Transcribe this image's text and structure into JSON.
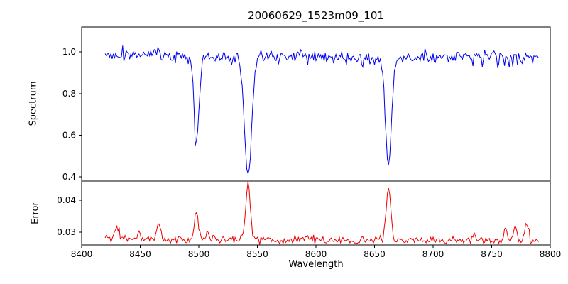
{
  "chart_data": {
    "type": "line",
    "title": "20060629_1523m09_101",
    "xlabel": "Wavelength",
    "legend": null,
    "grid": false,
    "x_range": [
      8400,
      8800
    ],
    "x_ticks": [
      8400,
      8450,
      8500,
      8550,
      8600,
      8650,
      8700,
      8750,
      8800
    ],
    "x_tick_labels": [
      "8400",
      "8450",
      "8500",
      "8550",
      "8600",
      "8650",
      "8700",
      "8750",
      "8800"
    ],
    "data_x_start": 8420,
    "data_x_end": 8790,
    "seed": 20060629,
    "panels": [
      {
        "name": "spectrum",
        "ylabel": "Spectrum",
        "ylim": [
          0.38,
          1.12
        ],
        "y_ticks": [
          0.4,
          0.6,
          0.8,
          1.0
        ],
        "y_tick_labels": [
          "0.4",
          "0.6",
          "0.8",
          "1.0"
        ],
        "line_color": "#0000ee",
        "series": {
          "kind": "noisy continuum with absorption lines (Ca II triplet)",
          "continuum": 0.978,
          "noise_sigma": 0.015,
          "absorption_lines": [
            {
              "center": 8498,
              "depth_below_continuum": 0.4,
              "sigma": 2.2,
              "min_value": 0.58
            },
            {
              "center": 8542,
              "depth_below_continuum": 0.57,
              "sigma": 3.0,
              "min_value": 0.41
            },
            {
              "center": 8662,
              "depth_below_continuum": 0.51,
              "sigma": 2.5,
              "min_value": 0.47
            }
          ]
        }
      },
      {
        "name": "error",
        "ylabel": "Error",
        "ylim": [
          0.026,
          0.046
        ],
        "y_ticks": [
          0.03,
          0.04
        ],
        "y_tick_labels": [
          "0.03",
          "0.04"
        ],
        "line_color": "#ee0000",
        "series": {
          "kind": "noisy baseline with emission-like error peaks at line cores",
          "baseline": 0.0278,
          "noise_sigma": 0.00055,
          "peaks": [
            {
              "center": 8430,
              "height": 0.0042,
              "sigma": 1.6
            },
            {
              "center": 8449,
              "height": 0.0022,
              "sigma": 1.4
            },
            {
              "center": 8466,
              "height": 0.0045,
              "sigma": 1.6
            },
            {
              "center": 8498,
              "height": 0.0075,
              "sigma": 1.8
            },
            {
              "center": 8507,
              "height": 0.0022,
              "sigma": 1.4
            },
            {
              "center": 8542,
              "height": 0.017,
              "sigma": 2.0,
              "max_value": 0.0445
            },
            {
              "center": 8662,
              "height": 0.0165,
              "sigma": 1.9,
              "max_value": 0.0435
            },
            {
              "center": 8735,
              "height": 0.0018,
              "sigma": 1.4
            },
            {
              "center": 8762,
              "height": 0.003,
              "sigma": 1.5
            },
            {
              "center": 8770,
              "height": 0.0046,
              "sigma": 1.5
            },
            {
              "center": 8780,
              "height": 0.0055,
              "sigma": 1.5
            }
          ]
        }
      }
    ]
  }
}
